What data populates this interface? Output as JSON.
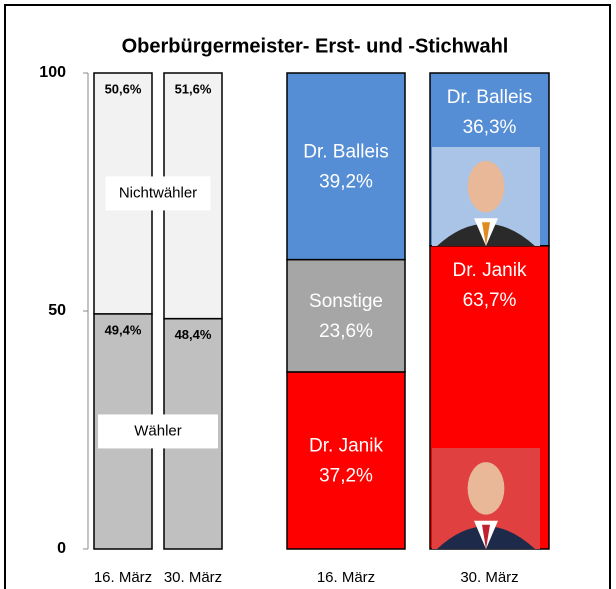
{
  "chart_data": {
    "type": "bar",
    "stacked": true,
    "title": "Oberbürgermeister- Erst- und -Stichwahl",
    "categories": [
      "16. März",
      "30. März",
      "16. März",
      "30. März"
    ],
    "ylim": [
      0,
      100
    ],
    "yticks": [
      0,
      50,
      100
    ],
    "series": [
      {
        "name": "Wähler",
        "color": "#c0c0c0",
        "values": [
          49.4,
          48.4,
          null,
          null
        ],
        "value_labels": [
          "49,4%",
          "48,4%",
          null,
          null
        ]
      },
      {
        "name": "Nichtwähler",
        "color": "#f2f2f2",
        "values": [
          50.6,
          51.6,
          null,
          null
        ],
        "value_labels": [
          "50,6%",
          "51,6%",
          null,
          null
        ]
      },
      {
        "name": "Dr. Janik",
        "color": "#ff0000",
        "values": [
          null,
          null,
          37.2,
          63.7
        ],
        "value_labels": [
          null,
          null,
          "37,2%",
          "63,7%"
        ]
      },
      {
        "name": "Sonstige",
        "color": "#a6a6a6",
        "values": [
          null,
          null,
          23.6,
          null
        ],
        "value_labels": [
          null,
          null,
          "23,6%",
          null
        ]
      },
      {
        "name": "Dr. Balleis",
        "color": "#558ed5",
        "values": [
          null,
          null,
          39.2,
          36.3
        ],
        "value_labels": [
          null,
          null,
          "39,2%",
          "36,3%"
        ]
      }
    ]
  }
}
